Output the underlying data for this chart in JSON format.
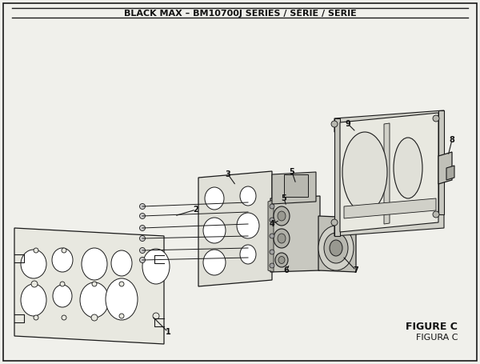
{
  "title": "BLACK MAX – BM10700J SERIES / SÉRIE / SERIE",
  "figure_label": "FIGURE C",
  "figura_label": "FIGURA C",
  "bg_color": "#f0f0eb",
  "line_color": "#1a1a1a",
  "panel1_color": "#e8e8e0",
  "panel3_color": "#e0e0d8",
  "assembly_color": "#c8c8c0",
  "box_color": "#d8d8d0",
  "box_inner_color": "#ececec"
}
